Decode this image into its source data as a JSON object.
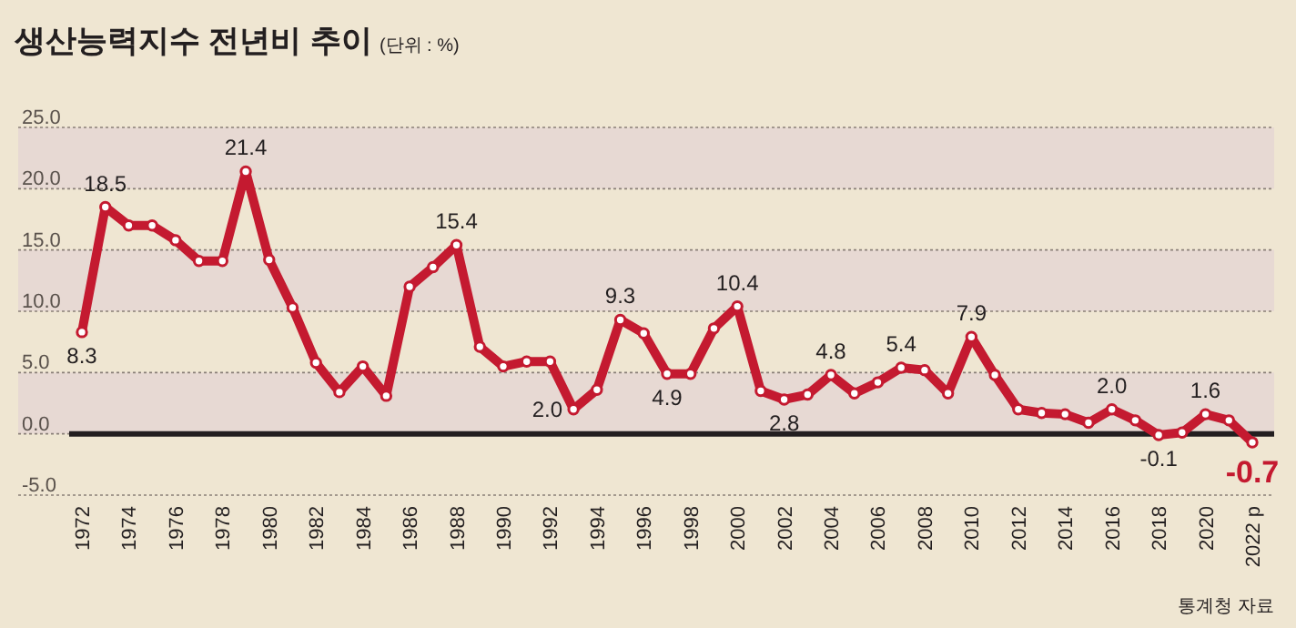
{
  "chart_data": {
    "type": "line",
    "title": "생산능력지수 전년비 추이",
    "subtitle": "(단위 : %)",
    "categories": [
      "1972",
      null,
      "1974",
      null,
      "1976",
      null,
      "1978",
      null,
      "1980",
      null,
      "1982",
      null,
      "1984",
      null,
      "1986",
      null,
      "1988",
      null,
      "1990",
      null,
      "1992",
      null,
      "1994",
      null,
      "1996",
      null,
      "1998",
      null,
      "2000",
      null,
      "2002",
      null,
      "2004",
      null,
      "2006",
      null,
      "2008",
      null,
      "2010",
      null,
      "2012",
      null,
      "2014",
      null,
      "2016",
      null,
      "2018",
      null,
      "2020",
      null,
      "2022 p"
    ],
    "series": [
      {
        "color": "#c41a30",
        "values": [
          8.3,
          18.5,
          17.0,
          17.0,
          15.8,
          14.1,
          14.1,
          21.4,
          14.2,
          10.3,
          5.8,
          3.4,
          5.5,
          3.1,
          12.0,
          13.6,
          15.4,
          7.1,
          5.5,
          5.9,
          5.9,
          2.0,
          3.6,
          9.3,
          8.2,
          4.9,
          4.9,
          8.6,
          10.4,
          3.5,
          2.8,
          3.2,
          4.8,
          3.3,
          4.2,
          5.4,
          5.2,
          3.3,
          7.9,
          4.8,
          2.0,
          1.7,
          1.6,
          0.9,
          2.0,
          1.1,
          -0.1,
          0.1,
          1.6,
          1.1,
          -0.7
        ],
        "value_labels": [
          "8.3",
          "18.5",
          null,
          null,
          null,
          null,
          null,
          "21.4",
          null,
          null,
          null,
          null,
          null,
          null,
          null,
          null,
          "15.4",
          null,
          null,
          null,
          null,
          "2.0",
          null,
          "9.3",
          null,
          "4.9",
          null,
          null,
          "10.4",
          null,
          "2.8",
          null,
          "4.8",
          null,
          null,
          "5.4",
          null,
          null,
          "7.9",
          null,
          null,
          null,
          null,
          null,
          "2.0",
          null,
          "-0.1",
          null,
          "1.6",
          null,
          "-0.7"
        ]
      }
    ],
    "ylim": [
      -5,
      25
    ],
    "yticks": [
      {
        "value": -5,
        "label": "-5.0"
      },
      {
        "value": 0,
        "label": "0.0"
      },
      {
        "value": 5,
        "label": "5.0"
      },
      {
        "value": 10,
        "label": "10.0"
      },
      {
        "value": 15,
        "label": "15.0"
      },
      {
        "value": 20,
        "label": "20.0"
      },
      {
        "value": 25,
        "label": "25.0"
      }
    ],
    "grid": "y",
    "marker": "circle",
    "line_style": "solid",
    "bands": [
      {
        "axis": "y",
        "from": 0,
        "to": 5,
        "color": "#e7d9d3"
      },
      {
        "axis": "y",
        "from": 10,
        "to": 15,
        "color": "#e7d9d3"
      },
      {
        "axis": "y",
        "from": 20,
        "to": 25,
        "color": "#e7d9d3"
      }
    ],
    "ref_lines": [
      {
        "axis": "y",
        "value": 0,
        "color": "#231f20"
      }
    ],
    "annotations": [
      "통계청 자료"
    ]
  }
}
